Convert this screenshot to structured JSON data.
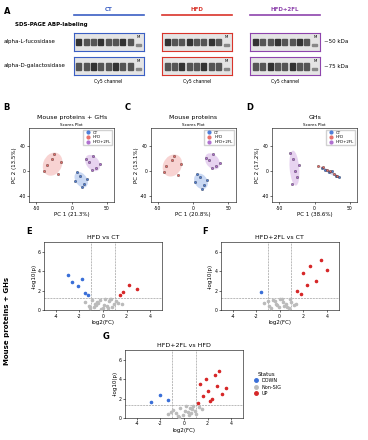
{
  "panel_labels": [
    "A",
    "B",
    "C",
    "D",
    "E",
    "F",
    "G"
  ],
  "side_label": "Mouse proteins + GHs",
  "gel": {
    "title": "SDS-PAGE ABP-labeling",
    "marker_label": "M",
    "groups": [
      {
        "name": "CT",
        "color": "#3b5fc4",
        "channel": "Cy5 channel"
      },
      {
        "name": "HFD",
        "color": "#d9342b",
        "channel": "Cy5 channel"
      },
      {
        "name": "HFD+2FL",
        "color": "#8e44ad",
        "channel": "Cy5 channel"
      }
    ],
    "rows": [
      {
        "name": "alpha-L-fucosidase",
        "size": "~50 kDa"
      },
      {
        "name": "alpha-D-galactosidase",
        "size": "~75 kDa"
      }
    ]
  },
  "chart_data": [
    {
      "type": "pca",
      "title": "Mouse proteins + GHs",
      "subtitle": "Scores Plot",
      "x_label": "PC 1 (21.3%)",
      "y_label": "PC 2 (13.5%)",
      "xlim": [
        -60,
        60
      ],
      "ylim": [
        -50,
        70
      ],
      "xticks": [
        -50,
        0,
        50
      ],
      "yticks": [
        -40,
        0,
        40
      ],
      "legend": "upper right",
      "series": [
        {
          "name": "CT",
          "color": "#4f7fd9",
          "x": [
            5,
            12,
            18,
            8,
            22,
            15
          ],
          "y": [
            -15,
            -8,
            -20,
            -2,
            -12,
            -25
          ]
        },
        {
          "name": "HFD",
          "color": "#e8706b",
          "x": [
            -35,
            -28,
            -20,
            -40,
            -15,
            -25
          ],
          "y": [
            10,
            20,
            -5,
            0,
            15,
            28
          ]
        },
        {
          "name": "HFD+2FL",
          "color": "#b070d0",
          "x": [
            25,
            35,
            30,
            40,
            20,
            28
          ],
          "y": [
            15,
            5,
            25,
            12,
            20,
            2
          ]
        }
      ]
    },
    {
      "type": "pca",
      "title": "Mouse proteins",
      "subtitle": "Scores Plot",
      "x_label": "PC 1 (20.8%)",
      "y_label": "PC 2 (13.1%)",
      "xlim": [
        -60,
        60
      ],
      "ylim": [
        -50,
        70
      ],
      "xticks": [
        -50,
        0,
        50
      ],
      "yticks": [
        -40,
        0,
        40
      ],
      "legend": "upper right",
      "series": [
        {
          "name": "CT",
          "color": "#4f7fd9",
          "x": [
            2,
            10,
            16,
            6,
            20,
            12
          ],
          "y": [
            -18,
            -10,
            -22,
            -5,
            -14,
            -28
          ]
        },
        {
          "name": "HFD",
          "color": "#e8706b",
          "x": [
            -38,
            -30,
            -22,
            -42,
            -18,
            -27
          ],
          "y": [
            8,
            18,
            -6,
            -2,
            12,
            25
          ]
        },
        {
          "name": "HFD+2FL",
          "color": "#b070d0",
          "x": [
            22,
            32,
            28,
            38,
            18,
            26
          ],
          "y": [
            18,
            8,
            28,
            14,
            22,
            5
          ]
        }
      ]
    },
    {
      "type": "pca",
      "title": "GHs",
      "subtitle": "Scores Plot",
      "x_label": "PC 1 (38.6%)",
      "y_label": "PC 2 (17.2%)",
      "xlim": [
        -60,
        60
      ],
      "ylim": [
        -50,
        70
      ],
      "xticks": [
        -50,
        0,
        50
      ],
      "yticks": [
        -40,
        0,
        40
      ],
      "legend": "upper right",
      "series": [
        {
          "name": "CT",
          "color": "#4f7fd9",
          "x": [
            10,
            20,
            30,
            25,
            15,
            35
          ],
          "y": [
            5,
            -2,
            -8,
            0,
            2,
            -10
          ]
        },
        {
          "name": "HFD",
          "color": "#e8706b",
          "x": [
            5,
            18,
            28,
            12,
            22,
            32
          ],
          "y": [
            8,
            2,
            -5,
            6,
            0,
            -8
          ]
        },
        {
          "name": "HFD+2FL",
          "color": "#b070d0",
          "x": [
            -30,
            -25,
            -35,
            -28,
            -32,
            -22
          ],
          "y": [
            20,
            -10,
            30,
            0,
            -20,
            10
          ]
        }
      ]
    },
    {
      "type": "volcano",
      "title": "HFD vs CT",
      "x_label": "log2(FC)",
      "y_label": "-log10(p)",
      "xlim": [
        -5,
        5
      ],
      "ylim": [
        0,
        7
      ],
      "xticks": [
        -4,
        -2,
        0,
        2,
        4
      ],
      "yticks": [
        0,
        2,
        4,
        6
      ],
      "thresholds_x": [
        -1,
        1
      ],
      "threshold_y": 1.3,
      "series": [
        {
          "color": "#bbbbbb",
          "x": [
            -0.8,
            -0.5,
            -0.3,
            0.1,
            0.4,
            0.6,
            0.9,
            -1.2,
            1.3,
            -0.2,
            0.2,
            0.5,
            -0.6,
            0.8,
            -1.5,
            1.6,
            0.0,
            -0.9,
            0.3,
            -0.4,
            1.1,
            -1.1,
            0.7,
            -0.7
          ],
          "y": [
            0.3,
            0.8,
            1.0,
            0.5,
            0.2,
            1.1,
            0.6,
            0.4,
            0.7,
            0.1,
            1.2,
            0.9,
            0.5,
            0.3,
            0.8,
            0.6,
            0.2,
            1.0,
            0.4,
            0.7,
            0.9,
            0.2,
            1.1,
            0.6
          ]
        },
        {
          "color": "#3a6fd8",
          "x": [
            -2.1,
            -1.8,
            -1.5,
            -2.6,
            -1.3,
            -3.0
          ],
          "y": [
            2.5,
            3.2,
            1.8,
            2.9,
            1.6,
            3.6
          ]
        },
        {
          "color": "#d62728",
          "x": [
            1.7,
            2.2,
            2.9,
            1.4
          ],
          "y": [
            1.9,
            2.6,
            2.2,
            1.6
          ]
        }
      ]
    },
    {
      "type": "volcano",
      "title": "HFD+2FL vs CT",
      "x_label": "log2(FC)",
      "y_label": "-log10(p)",
      "xlim": [
        -5,
        5
      ],
      "ylim": [
        0,
        7
      ],
      "xticks": [
        -4,
        -2,
        0,
        2,
        4
      ],
      "yticks": [
        0,
        2,
        4,
        6
      ],
      "thresholds_x": [
        -1,
        1
      ],
      "threshold_y": 1.3,
      "series": [
        {
          "color": "#bbbbbb",
          "x": [
            -0.9,
            -0.4,
            -0.1,
            0.2,
            0.5,
            0.8,
            -1.3,
            1.2,
            -0.6,
            0.3,
            0.9,
            -0.2,
            0.6,
            -1.0,
            1.4,
            0.0,
            -0.7,
            0.4,
            1.0,
            -0.3
          ],
          "y": [
            0.4,
            0.9,
            0.3,
            1.1,
            0.6,
            0.2,
            0.7,
            0.5,
            1.0,
            0.8,
            1.2,
            0.5,
            0.3,
            0.9,
            0.6,
            1.1,
            0.2,
            0.4,
            0.8,
            0.6
          ]
        },
        {
          "color": "#3a6fd8",
          "x": [
            -1.6
          ],
          "y": [
            1.9
          ]
        },
        {
          "color": "#d62728",
          "x": [
            1.5,
            2.0,
            2.6,
            3.1,
            3.5,
            1.8,
            2.3,
            4.0
          ],
          "y": [
            2.0,
            3.8,
            4.5,
            3.0,
            5.2,
            1.7,
            2.6,
            4.1
          ]
        }
      ]
    },
    {
      "type": "volcano",
      "title": "HFD+2FL vs HFD",
      "x_label": "log2(FC)",
      "y_label": "-log10(p)",
      "xlim": [
        -5,
        5
      ],
      "ylim": [
        0,
        7
      ],
      "xticks": [
        -4,
        -2,
        0,
        2,
        4
      ],
      "yticks": [
        0,
        2,
        4,
        6
      ],
      "thresholds_x": [
        -1,
        1
      ],
      "threshold_y": 1.3,
      "legend": "center left",
      "legend_title": "Status",
      "series": [
        {
          "name": "DOWN",
          "color": "#3a6fd8",
          "x": [
            -1.4,
            -2.0,
            -2.8
          ],
          "y": [
            1.8,
            2.4,
            1.6
          ]
        },
        {
          "name": "Non-SIG",
          "color": "#bbbbbb",
          "x": [
            -0.7,
            -0.3,
            0.1,
            0.4,
            0.7,
            1.0,
            -1.1,
            1.3,
            -0.5,
            0.2,
            0.6,
            -0.9,
            0.9,
            -0.1,
            0.5,
            -1.4,
            1.5,
            0.3,
            -0.4,
            0.8
          ],
          "y": [
            0.5,
            1.0,
            0.7,
            0.3,
            0.9,
            0.4,
            0.6,
            1.1,
            0.2,
            1.2,
            0.5,
            0.8,
            0.7,
            0.3,
            1.0,
            0.4,
            0.9,
            0.6,
            0.1,
            1.2
          ]
        },
        {
          "name": "UP",
          "color": "#d62728",
          "x": [
            1.2,
            1.6,
            2.0,
            2.4,
            2.8,
            3.2,
            1.9,
            2.6,
            3.6,
            1.4,
            2.2,
            3.0
          ],
          "y": [
            1.5,
            2.3,
            2.8,
            1.9,
            3.3,
            2.5,
            4.0,
            4.4,
            3.1,
            3.5,
            1.7,
            4.8
          ]
        }
      ]
    }
  ]
}
